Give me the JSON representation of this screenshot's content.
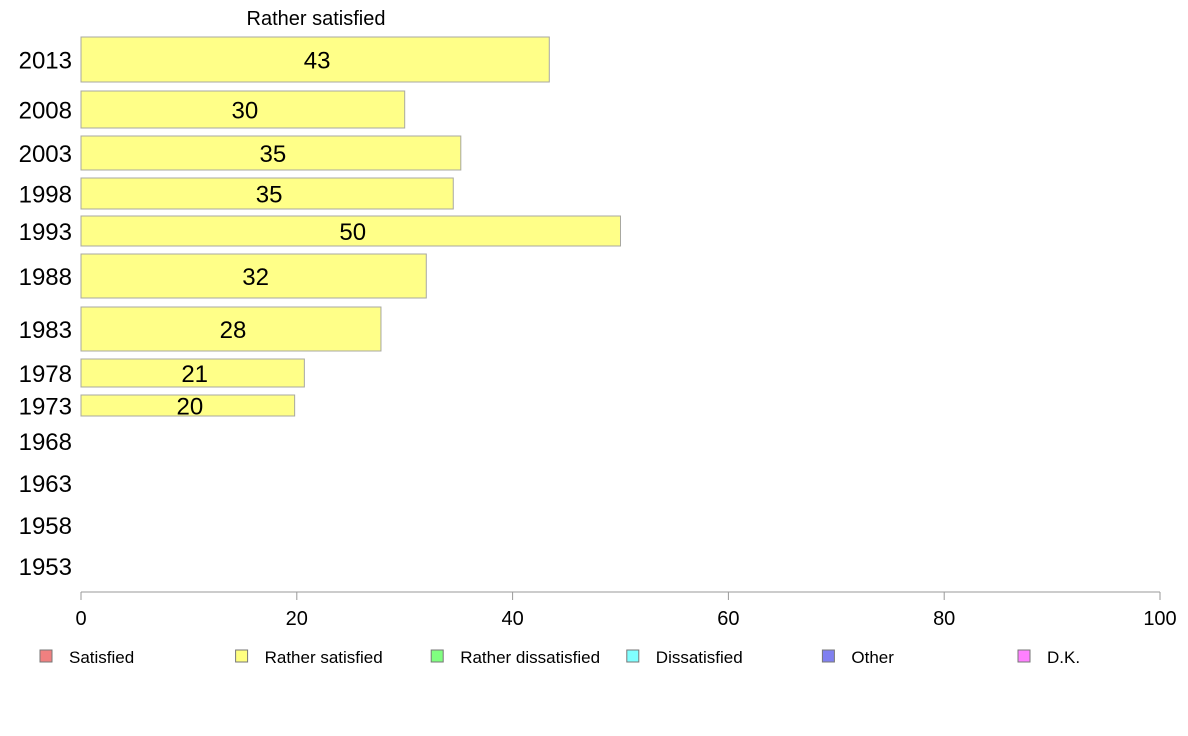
{
  "chart_data": {
    "type": "bar",
    "orientation": "horizontal",
    "title": "Rather satisfied",
    "xlim": [
      0,
      100
    ],
    "xticks": [
      0,
      20,
      40,
      60,
      80,
      100
    ],
    "grid": false,
    "legend_position": "bottom",
    "categories": [
      "2013",
      "2008",
      "2003",
      "1998",
      "1993",
      "1988",
      "1983",
      "1978",
      "1973",
      "1968",
      "1963",
      "1958",
      "1953"
    ],
    "series": [
      {
        "name": "Rather satisfied",
        "color": "#ffff88",
        "values": [
          43.4,
          30,
          35.2,
          34.5,
          50,
          32,
          27.8,
          20.7,
          19.8,
          null,
          null,
          null,
          null
        ],
        "labels": [
          "43",
          "30",
          "35",
          "35",
          "50",
          "32",
          "28",
          "21",
          "20",
          "",
          "",
          "",
          ""
        ]
      }
    ],
    "legend": [
      {
        "label": "Satisfied",
        "color": "#f08080"
      },
      {
        "label": "Rather satisfied",
        "color": "#ffff80"
      },
      {
        "label": "Rather dissatisfied",
        "color": "#80ff80"
      },
      {
        "label": "Dissatisfied",
        "color": "#80ffff"
      },
      {
        "label": "Other",
        "color": "#8080f0"
      },
      {
        "label": "D.K.",
        "color": "#ff80ff"
      }
    ]
  }
}
